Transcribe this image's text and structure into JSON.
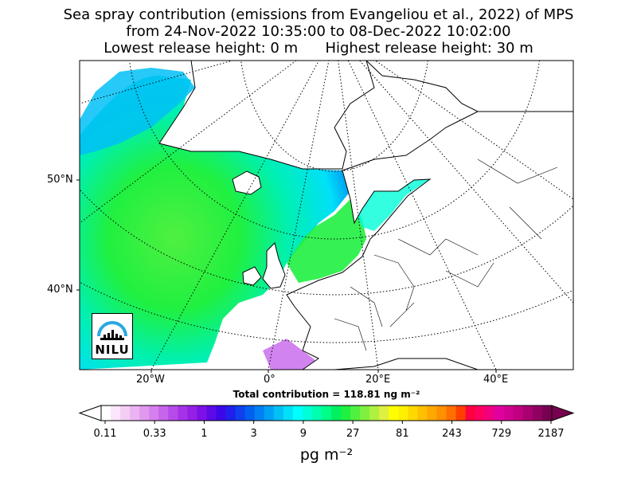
{
  "title": {
    "line1": "Sea spray contribution (emissions from Evangeliou et al., 2022) of MPS",
    "line2": "from 24-Nov-2022 10:35:00 to 08-Dec-2022 10:02:00",
    "line3": "Lowest release height: 0 m      Highest release height: 30 m"
  },
  "map": {
    "lat_labels": [
      "50°N",
      "40°N"
    ],
    "lon_labels": [
      "20°W",
      "0°",
      "20°E",
      "40°E"
    ],
    "graticule": "dotted",
    "coastline_color": "#000000",
    "ocean_fill_start_color": "#00ffff"
  },
  "total_contribution": "Total contribution = 118.81 ng m⁻²",
  "colorbar": {
    "tick_labels": [
      "0.11",
      "0.33",
      "1",
      "3",
      "9",
      "27",
      "81",
      "243",
      "729",
      "2187"
    ],
    "units": "pg m⁻²",
    "colors": [
      "#ffffff",
      "#fbe6fb",
      "#f4cdf4",
      "#ecb3f2",
      "#e199f0",
      "#d67fee",
      "#c665ec",
      "#b64bea",
      "#a632e8",
      "#9420e6",
      "#7d10e8",
      "#5c0ae8",
      "#3b08ea",
      "#2020ec",
      "#1040ee",
      "#0060f0",
      "#0080f2",
      "#00a0f4",
      "#00c0f6",
      "#00e0f8",
      "#00ffff",
      "#00ffd8",
      "#00ffb0",
      "#00ff88",
      "#00f060",
      "#20f040",
      "#50f040",
      "#80f040",
      "#b0f040",
      "#e0f040",
      "#ffff00",
      "#fff000",
      "#ffd800",
      "#ffc000",
      "#ffa800",
      "#ff9000",
      "#ff7000",
      "#ff4000",
      "#ff0040",
      "#ff0060",
      "#f00080",
      "#e000a0",
      "#d00090",
      "#c00080",
      "#a80070",
      "#900060",
      "#780050"
    ]
  },
  "logo": {
    "text": "NILU",
    "accent": "#29a8e0"
  }
}
